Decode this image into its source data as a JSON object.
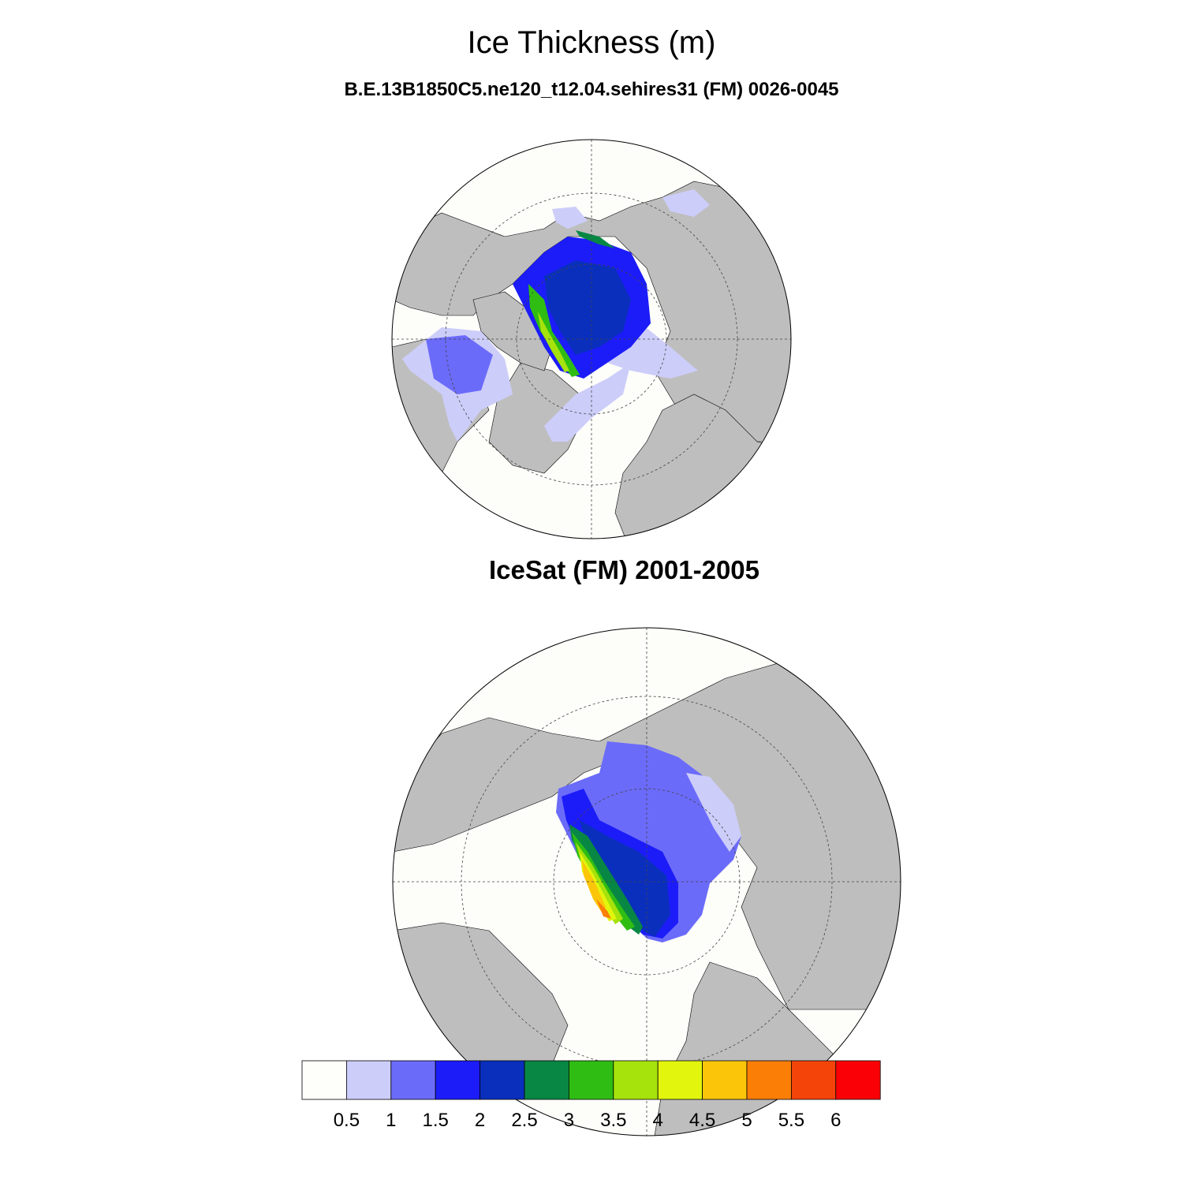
{
  "figure": {
    "title": "Ice Thickness (m)",
    "panel1_title": "B.E.13B1850C5.ne120_t12.04.sehires31 (FM) 0026-0045",
    "panel2_title": "IceSat (FM) 2001-2005"
  },
  "colors": {
    "land": "#bebebe",
    "ocean": "#fdfdfa",
    "bins": [
      "#fefefb",
      "#cdcdfa",
      "#6b6bfa",
      "#1c1cf9",
      "#0a2fbd",
      "#088744",
      "#2fbd14",
      "#a6e20c",
      "#e2f50c",
      "#fbc60a",
      "#fb7e06",
      "#f5440a",
      "#fa0006"
    ]
  },
  "colorbar": {
    "levels": [
      "0.5",
      "1",
      "1.5",
      "2",
      "2.5",
      "3",
      "3.5",
      "4",
      "4.5",
      "5",
      "5.5",
      "6"
    ]
  },
  "chart_data": {
    "type": "heatmap",
    "variable": "Ice Thickness (m)",
    "projection": "north polar stereographic",
    "panels": [
      {
        "name": "B.E.13B1850C5.ne120_t12.04.sehires31 (FM) 0026-0045",
        "max_value_approx": 4.5
      },
      {
        "name": "IceSat (FM) 2001-2005",
        "max_value_approx": 5.5
      }
    ]
  }
}
